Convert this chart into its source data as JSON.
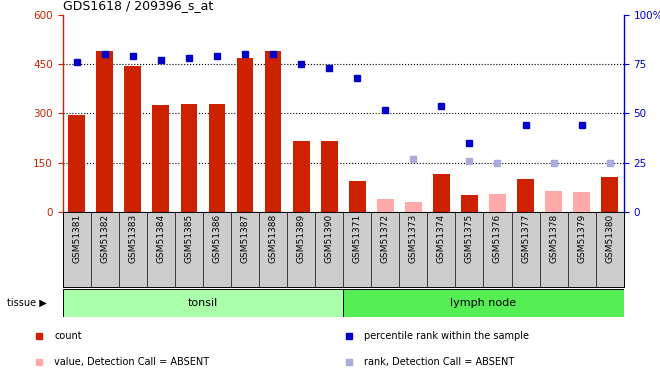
{
  "title": "GDS1618 / 209396_s_at",
  "samples": [
    "GSM51381",
    "GSM51382",
    "GSM51383",
    "GSM51384",
    "GSM51385",
    "GSM51386",
    "GSM51387",
    "GSM51388",
    "GSM51389",
    "GSM51390",
    "GSM51371",
    "GSM51372",
    "GSM51373",
    "GSM51374",
    "GSM51375",
    "GSM51376",
    "GSM51377",
    "GSM51378",
    "GSM51379",
    "GSM51380"
  ],
  "counts": [
    295,
    490,
    445,
    325,
    330,
    330,
    470,
    490,
    215,
    215,
    95,
    null,
    null,
    115,
    50,
    null,
    100,
    null,
    null,
    105
  ],
  "counts_absent": [
    null,
    null,
    null,
    null,
    null,
    null,
    null,
    null,
    null,
    null,
    null,
    40,
    30,
    null,
    null,
    55,
    null,
    65,
    60,
    null
  ],
  "ranks": [
    76,
    80,
    79,
    77,
    78,
    79,
    80,
    80,
    75,
    73,
    68,
    52,
    null,
    54,
    35,
    null,
    44,
    null,
    44,
    null
  ],
  "ranks_absent": [
    null,
    null,
    null,
    null,
    null,
    null,
    null,
    null,
    null,
    null,
    null,
    null,
    27,
    null,
    26,
    25,
    null,
    25,
    null,
    25
  ],
  "tonsil_count": 10,
  "lymph_count": 10,
  "ylim_left": [
    0,
    600
  ],
  "ylim_right": [
    0,
    100
  ],
  "yticks_left": [
    0,
    150,
    300,
    450,
    600
  ],
  "yticks_right": [
    0,
    25,
    50,
    75,
    100
  ],
  "bar_color": "#cc2200",
  "bar_color_absent": "#ffaaaa",
  "rank_color": "#0000cc",
  "rank_color_absent": "#aaaadd",
  "tonsil_color": "#aaffaa",
  "lymph_color": "#55ee55",
  "bg_color": "#cccccc",
  "legend_items": [
    "count",
    "percentile rank within the sample",
    "value, Detection Call = ABSENT",
    "rank, Detection Call = ABSENT"
  ]
}
